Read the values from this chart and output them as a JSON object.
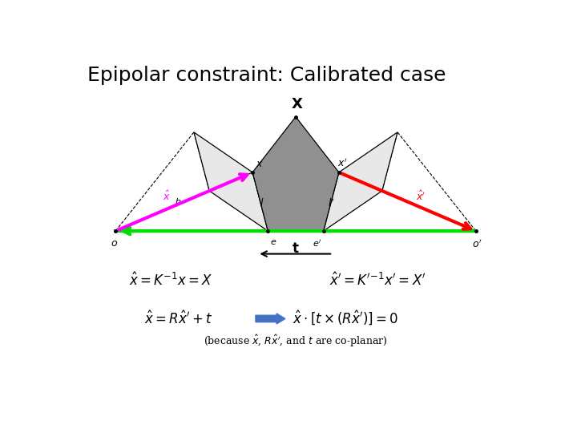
{
  "title": "Epipolar constraint: Calibrated case",
  "title_fontsize": 18,
  "bg_color": "#ffffff",
  "plane_color": "#e8e8e8",
  "epipolar_gray": "#909090",
  "green_color": "#00dd00",
  "magenta_color": "#ff00ff",
  "red_color": "#ff0000",
  "blue_arrow_color": "#4472C4",
  "eq1_left": "$\\hat{x} = K^{-1}x = X$",
  "eq1_right": "$\\hat{x}' = K'^{-1}x' = X'$",
  "eq2_left": "$\\hat{x} = R\\hat{x}' + t$",
  "eq2_right": "$\\hat{x} \\cdot [t \\times (R\\hat{x}')] = 0$",
  "eq3": "(because $\\hat{x}$, $R\\hat{x}'$, and $t$ are co-planar)"
}
